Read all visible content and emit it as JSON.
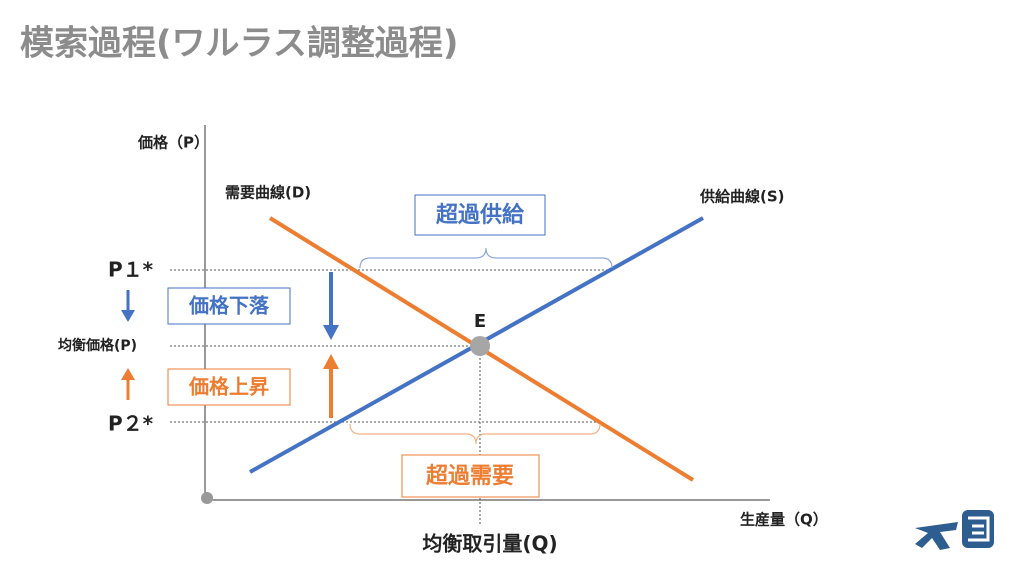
{
  "title": "模索過程(ワルラス調整過程)",
  "axes": {
    "y_label": "価格（P）",
    "x_label": "生産量（Q）"
  },
  "curves": {
    "demand": "需要曲線(D)",
    "supply": "供給曲線(S)"
  },
  "point": "E",
  "price_levels": {
    "p1": "P１*",
    "equilibrium": "均衡価格(P)",
    "p2": "P２*"
  },
  "boxes": {
    "excess_supply": "超過供給",
    "excess_demand": "超過需要",
    "price_fall": "価格下落",
    "price_rise": "価格上昇"
  },
  "equilibrium_quantity": "均衡取引量(Q)"
}
